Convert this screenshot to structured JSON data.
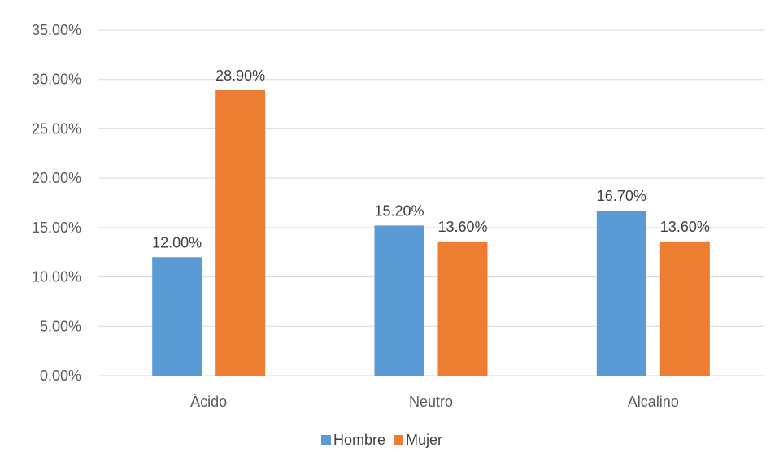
{
  "chart_data": {
    "type": "bar",
    "title": "",
    "xlabel": "",
    "ylabel": "",
    "categories": [
      "Ácido",
      "Neutro",
      "Alcalino"
    ],
    "series": [
      {
        "name": "Hombre",
        "values": [
          12.0,
          15.2,
          16.7
        ],
        "labels": [
          "12.00%",
          "15.20%",
          "16.70%"
        ],
        "color": "#5b9bd5"
      },
      {
        "name": "Mujer",
        "values": [
          28.9,
          13.6,
          13.6
        ],
        "labels": [
          "28.90%",
          "13.60%",
          "13.60%"
        ],
        "color": "#ed7d31"
      }
    ],
    "ylim": [
      0,
      35
    ],
    "yticks": [
      0,
      5,
      10,
      15,
      20,
      25,
      30,
      35
    ],
    "ytick_labels": [
      "0.00%",
      "5.00%",
      "10.00%",
      "15.00%",
      "20.00%",
      "25.00%",
      "30.00%",
      "35.00%"
    ],
    "grid": true,
    "gridline_color": "#d9d9d9",
    "legend_position": "bottom"
  }
}
